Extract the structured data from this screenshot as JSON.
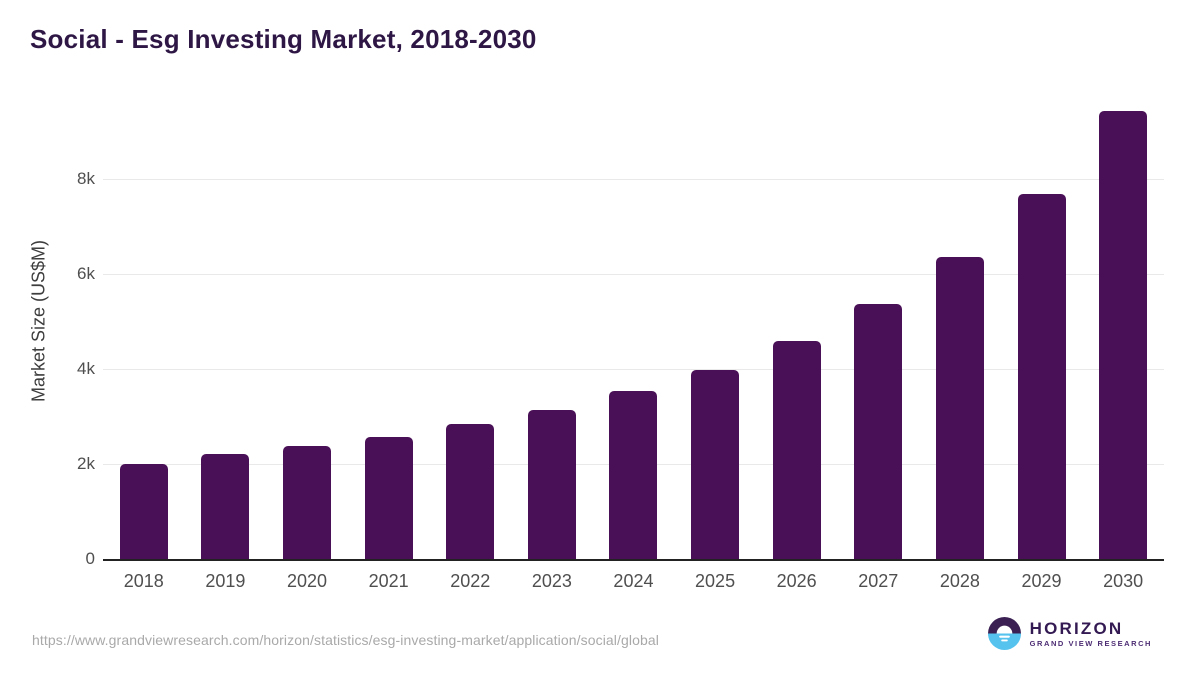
{
  "chart_data": {
    "type": "bar",
    "title": "Social - Esg Investing Market, 2018-2030",
    "xlabel": "",
    "ylabel": "Market Size (US$M)",
    "categories": [
      "2018",
      "2019",
      "2020",
      "2021",
      "2022",
      "2023",
      "2024",
      "2025",
      "2026",
      "2027",
      "2028",
      "2029",
      "2030"
    ],
    "values": [
      2010,
      2210,
      2380,
      2560,
      2840,
      3140,
      3530,
      3970,
      4590,
      5370,
      6360,
      7690,
      9440
    ],
    "ylim": [
      0,
      10000
    ],
    "yticks": [
      {
        "value": 0,
        "label": "0"
      },
      {
        "value": 2000,
        "label": "2k"
      },
      {
        "value": 4000,
        "label": "4k"
      },
      {
        "value": 6000,
        "label": "6k"
      },
      {
        "value": 8000,
        "label": "8k"
      }
    ],
    "grid": true,
    "legend": false,
    "bar_color": "#4a1057"
  },
  "footer": {
    "source_url": "https://www.grandviewresearch.com/horizon/statistics/esg-investing-market/application/social/global",
    "logo": {
      "brand": "HORIZON",
      "tagline": "GRAND VIEW RESEARCH"
    }
  },
  "colors": {
    "bar": "#4a1057",
    "title_text": "#2e1745",
    "axis_line": "#222222",
    "gridline": "#e9e9e9",
    "tick_text": "#4f4f4f",
    "url_text": "#a9a9a9",
    "logo_purple": "#3b2153",
    "logo_blue": "#55c3ee"
  }
}
